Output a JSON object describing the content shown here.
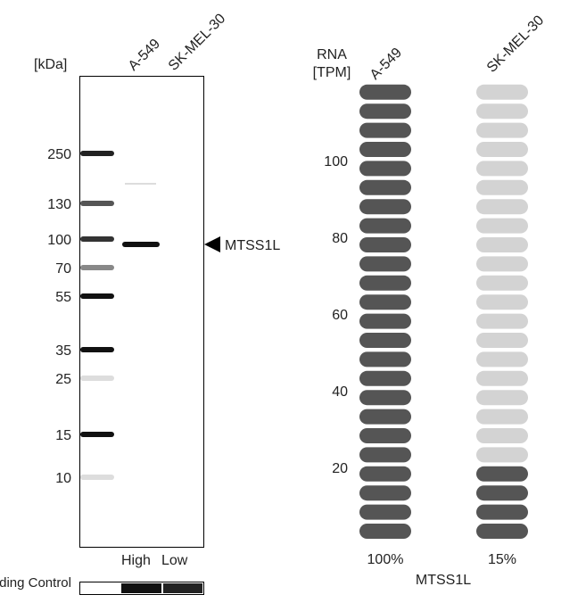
{
  "blot": {
    "unit_label": "[kDa]",
    "lanes": [
      "A-549",
      "SK-MEL-30"
    ],
    "markers": [
      "250",
      "130",
      "100",
      "70",
      "55",
      "35",
      "25",
      "15",
      "10"
    ],
    "target": "MTSS1L",
    "levels": [
      "High",
      "Low"
    ],
    "loading_control": "Loading Control"
  },
  "rna": {
    "axis_label": "RNA [TPM]",
    "yticks": [
      "20",
      "40",
      "60",
      "80",
      "100"
    ],
    "columns": [
      {
        "label": "A-549",
        "percent": "100%",
        "filled_pills": 24,
        "total_pills": 24
      },
      {
        "label": "SK-MEL-30",
        "percent": "15%",
        "filled_pills": 4,
        "total_pills": 24
      }
    ],
    "gene": "MTSS1L"
  }
}
